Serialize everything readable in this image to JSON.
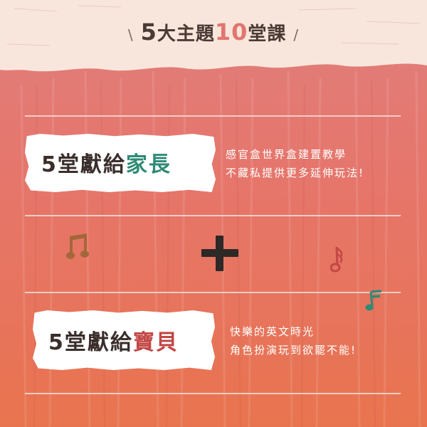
{
  "header": {
    "slash_left": "\\",
    "five": "5",
    "text_a": "大主題",
    "ten": "10",
    "text_b": "堂課",
    "slash_right": "/"
  },
  "parents_section": {
    "prefix": "5堂獻給",
    "highlight": "家長",
    "desc_line1": "感官盒世界盒建置教學",
    "desc_line2": "不藏私提供更多延伸玩法!"
  },
  "kids_section": {
    "prefix": "5堂獻給",
    "highlight": "寶貝",
    "desc_line1": "快樂的英文時光",
    "desc_line2": "角色扮演玩到欲罷不能!"
  },
  "icons": {
    "plus": "plus-icon",
    "note_brown": "music-note-icon",
    "note_red": "music-note-icon",
    "note_teal": "music-note-icon"
  },
  "colors": {
    "cream": "#f8e6dc",
    "accent_teal": "#2f8a76",
    "accent_red": "#c24745",
    "dark_text": "#3a2e2b",
    "brown_note": "#a4673a"
  }
}
